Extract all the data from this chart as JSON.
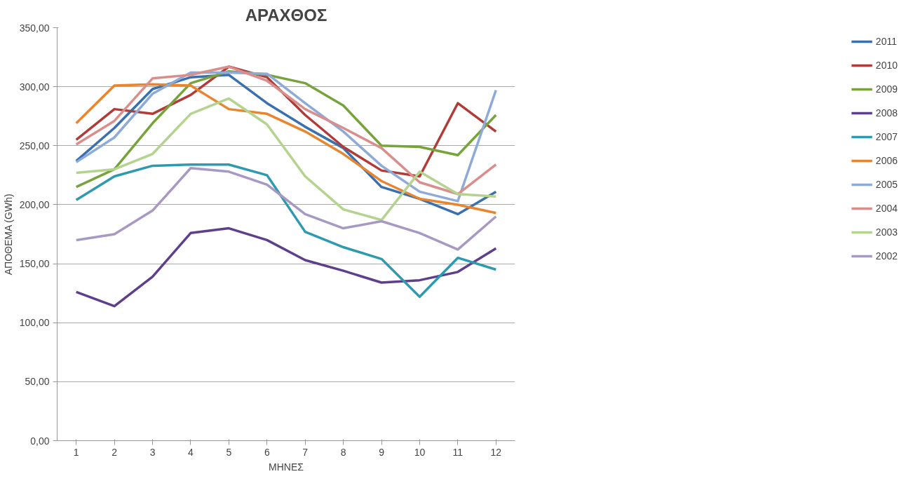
{
  "chart_data": {
    "type": "line",
    "title": "ΑΡΑΧΘΟΣ",
    "xlabel": "ΜΗΝΕΣ",
    "ylabel": "ΑΠΟΘΕΜΑ (GWh)",
    "x": [
      1,
      2,
      3,
      4,
      5,
      6,
      7,
      8,
      9,
      10,
      11,
      12
    ],
    "xlim": [
      0.5,
      12.5
    ],
    "xticks": [
      1,
      2,
      3,
      4,
      5,
      6,
      7,
      8,
      9,
      10,
      11,
      12
    ],
    "ylim": [
      0,
      350
    ],
    "yticks": [
      {
        "value": 0,
        "label": "0,00"
      },
      {
        "value": 50,
        "label": "50,00"
      },
      {
        "value": 100,
        "label": "100,00"
      },
      {
        "value": 150,
        "label": "150,00"
      },
      {
        "value": 200,
        "label": "200,00"
      },
      {
        "value": 250,
        "label": "250,00"
      },
      {
        "value": 300,
        "label": "300,00"
      },
      {
        "value": 350,
        "label": "350,00"
      }
    ],
    "grid": "y",
    "legend": "right",
    "line_style": "solid",
    "series": [
      {
        "name": "2011",
        "color": "#3a6fb0",
        "values": [
          237,
          265,
          298,
          308,
          310,
          286,
          266,
          248,
          215,
          205,
          192,
          211
        ]
      },
      {
        "name": "2010",
        "color": "#b23b37",
        "values": [
          255,
          281,
          277,
          293,
          317,
          308,
          276,
          249,
          229,
          224,
          286,
          262
        ]
      },
      {
        "name": "2009",
        "color": "#77a33b",
        "values": [
          215,
          230,
          269,
          303,
          313,
          310,
          303,
          284,
          250,
          249,
          242,
          276
        ]
      },
      {
        "name": "2008",
        "color": "#5e3f8b",
        "values": [
          126,
          114,
          139,
          176,
          180,
          170,
          153,
          144,
          134,
          136,
          143,
          163
        ]
      },
      {
        "name": "2007",
        "color": "#2e9ab0",
        "values": [
          204,
          224,
          233,
          234,
          234,
          225,
          177,
          164,
          154,
          122,
          155,
          145
        ]
      },
      {
        "name": "2006",
        "color": "#e8852e",
        "values": [
          269,
          301,
          302,
          301,
          281,
          277,
          262,
          243,
          220,
          205,
          200,
          193
        ]
      },
      {
        "name": "2005",
        "color": "#8eaad6",
        "values": [
          236,
          257,
          294,
          312,
          312,
          311,
          286,
          262,
          233,
          211,
          203,
          297
        ]
      },
      {
        "name": "2004",
        "color": "#d98e8c",
        "values": [
          251,
          271,
          307,
          310,
          317,
          305,
          281,
          265,
          248,
          219,
          209,
          234
        ]
      },
      {
        "name": "2003",
        "color": "#b3d38e",
        "values": [
          227,
          230,
          243,
          277,
          290,
          268,
          224,
          196,
          187,
          228,
          209,
          207
        ]
      },
      {
        "name": "2002",
        "color": "#a898c4",
        "values": [
          170,
          175,
          195,
          231,
          228,
          217,
          192,
          180,
          186,
          176,
          162,
          190
        ]
      }
    ]
  }
}
